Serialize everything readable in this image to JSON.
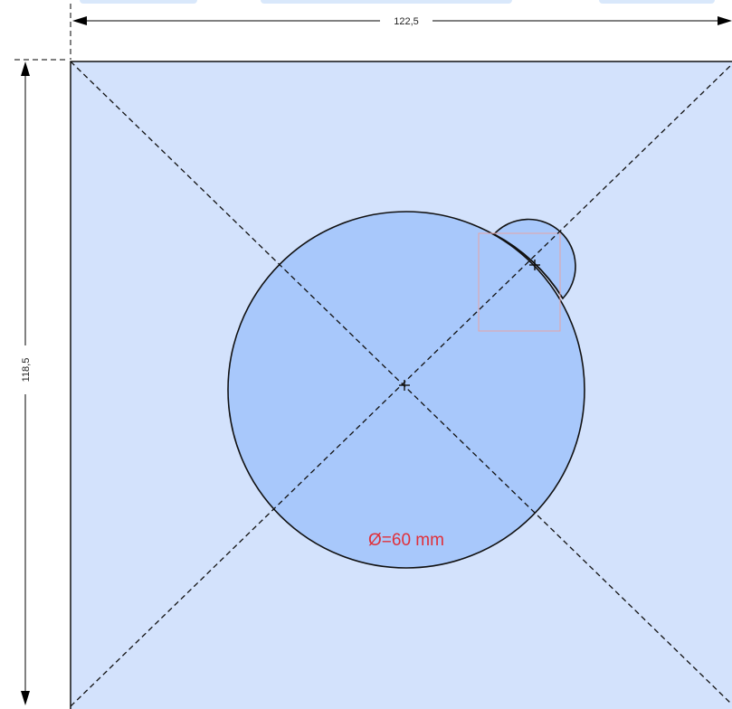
{
  "drawing": {
    "width_label": "122,5",
    "height_label": "118,5",
    "diameter_label": "Ø=60 mm"
  },
  "colors": {
    "plate_fill": "#d3e2fc",
    "circle_fill": "#a8c8fb",
    "outline": "#111111",
    "dimension_line": "#000000",
    "diameter_text": "#e0303a",
    "selection_box": "#e6a4a4",
    "top_tab": "#d9e8fb"
  }
}
